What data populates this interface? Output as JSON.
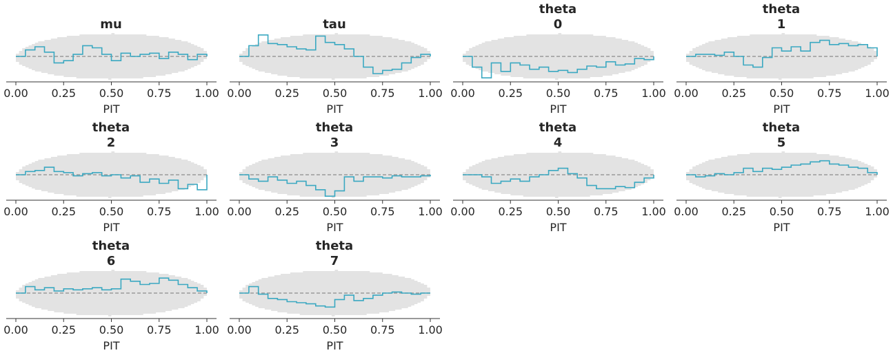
{
  "figure": {
    "band_color": "#e3e3e3",
    "line_color": "#3aa8c1",
    "reference_color": "#999999",
    "axis_color": "#333333",
    "text_color": "#262626"
  },
  "chart_data": [
    {
      "type": "line",
      "title_lines": [
        "mu"
      ],
      "xlabel": "PIT",
      "xlim": [
        0,
        1
      ],
      "xticks": [
        "0.00",
        "0.25",
        "0.50",
        "0.75",
        "1.00"
      ],
      "x": [
        0.0,
        0.05,
        0.1,
        0.15,
        0.2,
        0.25,
        0.3,
        0.35,
        0.4,
        0.45,
        0.5,
        0.55,
        0.6,
        0.65,
        0.7,
        0.75,
        0.8,
        0.85,
        0.9,
        0.95,
        1.0
      ],
      "y": [
        0.0,
        0.012,
        0.018,
        0.008,
        -0.012,
        -0.008,
        0.004,
        0.02,
        0.016,
        0.004,
        -0.008,
        0.006,
        0.0,
        0.004,
        0.006,
        -0.004,
        0.008,
        0.004,
        -0.006,
        0.004,
        0.0
      ]
    },
    {
      "type": "line",
      "title_lines": [
        "tau"
      ],
      "xlabel": "PIT",
      "xlim": [
        0,
        1
      ],
      "xticks": [
        "0.00",
        "0.25",
        "0.50",
        "0.75",
        "1.00"
      ],
      "x": [
        0.0,
        0.05,
        0.1,
        0.15,
        0.2,
        0.25,
        0.3,
        0.35,
        0.4,
        0.45,
        0.5,
        0.55,
        0.6,
        0.65,
        0.7,
        0.75,
        0.8,
        0.85,
        0.9,
        0.95,
        1.0
      ],
      "y": [
        0.0,
        0.02,
        0.04,
        0.024,
        0.022,
        0.018,
        0.014,
        0.012,
        0.038,
        0.026,
        0.022,
        0.014,
        0.0,
        -0.02,
        -0.032,
        -0.026,
        -0.024,
        -0.012,
        -0.002,
        0.004,
        0.0
      ]
    },
    {
      "type": "line",
      "title_lines": [
        "theta",
        "0"
      ],
      "xlabel": "PIT",
      "xlim": [
        0,
        1
      ],
      "xticks": [
        "0.00",
        "0.25",
        "0.50",
        "0.75",
        "1.00"
      ],
      "x": [
        0.0,
        0.05,
        0.1,
        0.15,
        0.2,
        0.25,
        0.3,
        0.35,
        0.4,
        0.45,
        0.5,
        0.55,
        0.6,
        0.65,
        0.7,
        0.75,
        0.8,
        0.85,
        0.9,
        0.95,
        1.0
      ],
      "y": [
        0.0,
        -0.02,
        -0.04,
        -0.012,
        -0.028,
        -0.012,
        -0.016,
        -0.024,
        -0.02,
        -0.028,
        -0.026,
        -0.03,
        -0.024,
        -0.018,
        -0.02,
        -0.01,
        -0.016,
        -0.014,
        -0.004,
        -0.006,
        0.0
      ]
    },
    {
      "type": "line",
      "title_lines": [
        "theta",
        "1"
      ],
      "xlabel": "PIT",
      "xlim": [
        0,
        1
      ],
      "xticks": [
        "0.00",
        "0.25",
        "0.50",
        "0.75",
        "1.00"
      ],
      "x": [
        0.0,
        0.05,
        0.1,
        0.15,
        0.2,
        0.25,
        0.3,
        0.35,
        0.4,
        0.45,
        0.5,
        0.55,
        0.6,
        0.65,
        0.7,
        0.75,
        0.8,
        0.85,
        0.9,
        0.95,
        1.0
      ],
      "y": [
        0.0,
        0.004,
        0.004,
        0.002,
        0.008,
        0.0,
        -0.016,
        -0.02,
        -0.002,
        0.016,
        0.01,
        0.018,
        0.01,
        0.026,
        0.03,
        0.022,
        0.024,
        0.02,
        0.022,
        0.016,
        0.0
      ]
    },
    {
      "type": "line",
      "title_lines": [
        "theta",
        "2"
      ],
      "xlabel": "PIT",
      "xlim": [
        0,
        1
      ],
      "xticks": [
        "0.00",
        "0.25",
        "0.50",
        "0.75",
        "1.00"
      ],
      "x": [
        0.0,
        0.05,
        0.1,
        0.15,
        0.2,
        0.25,
        0.3,
        0.35,
        0.4,
        0.45,
        0.5,
        0.55,
        0.6,
        0.65,
        0.7,
        0.75,
        0.8,
        0.85,
        0.9,
        0.95,
        1.0
      ],
      "y": [
        0.0,
        0.006,
        0.008,
        0.014,
        0.006,
        0.004,
        -0.002,
        0.002,
        0.004,
        -0.002,
        0.0,
        -0.006,
        -0.002,
        -0.014,
        -0.008,
        -0.016,
        -0.01,
        -0.026,
        -0.018,
        -0.028,
        0.0
      ]
    },
    {
      "type": "line",
      "title_lines": [
        "theta",
        "3"
      ],
      "xlabel": "PIT",
      "xlim": [
        0,
        1
      ],
      "xticks": [
        "0.00",
        "0.25",
        "0.50",
        "0.75",
        "1.00"
      ],
      "x": [
        0.0,
        0.05,
        0.1,
        0.15,
        0.2,
        0.25,
        0.3,
        0.35,
        0.4,
        0.45,
        0.5,
        0.55,
        0.6,
        0.65,
        0.7,
        0.75,
        0.8,
        0.85,
        0.9,
        0.95,
        1.0
      ],
      "y": [
        0.0,
        -0.008,
        -0.012,
        -0.004,
        -0.01,
        -0.016,
        -0.012,
        -0.02,
        -0.028,
        -0.04,
        -0.03,
        -0.004,
        -0.012,
        -0.004,
        -0.004,
        -0.006,
        -0.002,
        -0.004,
        -0.004,
        -0.002,
        0.0
      ]
    },
    {
      "type": "line",
      "title_lines": [
        "theta",
        "4"
      ],
      "xlabel": "PIT",
      "xlim": [
        0,
        1
      ],
      "xticks": [
        "0.00",
        "0.25",
        "0.50",
        "0.75",
        "1.00"
      ],
      "x": [
        0.0,
        0.05,
        0.1,
        0.15,
        0.2,
        0.25,
        0.3,
        0.35,
        0.4,
        0.45,
        0.5,
        0.55,
        0.6,
        0.65,
        0.7,
        0.75,
        0.8,
        0.85,
        0.9,
        0.95,
        1.0
      ],
      "y": [
        0.0,
        0.0,
        -0.004,
        -0.016,
        -0.012,
        -0.008,
        -0.012,
        -0.004,
        0.0,
        0.008,
        0.012,
        0.002,
        -0.006,
        -0.02,
        -0.026,
        -0.026,
        -0.022,
        -0.024,
        -0.014,
        -0.006,
        0.0
      ]
    },
    {
      "type": "line",
      "title_lines": [
        "theta",
        "5"
      ],
      "xlabel": "PIT",
      "xlim": [
        0,
        1
      ],
      "xticks": [
        "0.00",
        "0.25",
        "0.50",
        "0.75",
        "1.00"
      ],
      "x": [
        0.0,
        0.05,
        0.1,
        0.15,
        0.2,
        0.25,
        0.3,
        0.35,
        0.4,
        0.45,
        0.5,
        0.55,
        0.6,
        0.65,
        0.7,
        0.75,
        0.8,
        0.85,
        0.9,
        0.95,
        1.0
      ],
      "y": [
        0.0,
        -0.004,
        -0.002,
        0.002,
        0.0,
        0.004,
        0.012,
        0.006,
        0.012,
        0.01,
        0.014,
        0.018,
        0.02,
        0.024,
        0.026,
        0.02,
        0.018,
        0.014,
        0.012,
        0.004,
        0.0
      ]
    },
    {
      "type": "line",
      "title_lines": [
        "theta",
        "6"
      ],
      "xlabel": "PIT",
      "xlim": [
        0,
        1
      ],
      "xticks": [
        "0.00",
        "0.25",
        "0.50",
        "0.75",
        "1.00"
      ],
      "x": [
        0.0,
        0.05,
        0.1,
        0.15,
        0.2,
        0.25,
        0.3,
        0.35,
        0.4,
        0.45,
        0.5,
        0.55,
        0.6,
        0.65,
        0.7,
        0.75,
        0.8,
        0.85,
        0.9,
        0.95,
        1.0
      ],
      "y": [
        0.0,
        0.012,
        0.006,
        0.01,
        0.004,
        0.008,
        0.006,
        0.008,
        0.01,
        0.006,
        0.008,
        0.026,
        0.022,
        0.016,
        0.018,
        0.028,
        0.024,
        0.016,
        0.01,
        0.004,
        0.0
      ]
    },
    {
      "type": "line",
      "title_lines": [
        "theta",
        "7"
      ],
      "xlabel": "PIT",
      "xlim": [
        0,
        1
      ],
      "xticks": [
        "0.00",
        "0.25",
        "0.50",
        "0.75",
        "1.00"
      ],
      "x": [
        0.0,
        0.05,
        0.1,
        0.15,
        0.2,
        0.25,
        0.3,
        0.35,
        0.4,
        0.45,
        0.5,
        0.55,
        0.6,
        0.65,
        0.7,
        0.75,
        0.8,
        0.85,
        0.9,
        0.95,
        1.0
      ],
      "y": [
        0.0,
        0.012,
        -0.002,
        -0.01,
        -0.012,
        -0.016,
        -0.018,
        -0.02,
        -0.024,
        -0.026,
        -0.012,
        -0.004,
        -0.014,
        -0.01,
        -0.004,
        0.0,
        0.002,
        0.0,
        -0.002,
        0.0,
        0.0
      ]
    }
  ]
}
